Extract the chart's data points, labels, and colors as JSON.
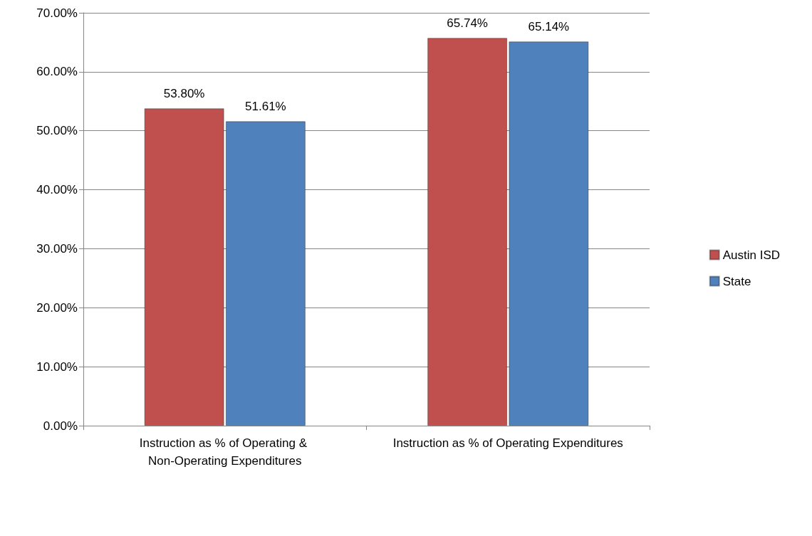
{
  "chart_data": {
    "type": "bar",
    "categories": [
      "Instruction as % of Operating & Non-Operating Expenditures",
      "Instruction as % of Operating Expenditures"
    ],
    "series": [
      {
        "name": "Austin ISD",
        "color": "#c0504d",
        "values": [
          53.8,
          65.74
        ],
        "value_labels": [
          "53.80%",
          "65.74%"
        ]
      },
      {
        "name": "State",
        "color": "#4f81bd",
        "values": [
          51.61,
          65.14
        ],
        "value_labels": [
          "51.61%",
          "65.14%"
        ]
      }
    ],
    "ylim": [
      0,
      70
    ],
    "yticks": [
      {
        "value": 0,
        "label": "0.00%"
      },
      {
        "value": 10,
        "label": "10.00%"
      },
      {
        "value": 20,
        "label": "20.00%"
      },
      {
        "value": 30,
        "label": "30.00%"
      },
      {
        "value": 40,
        "label": "40.00%"
      },
      {
        "value": 50,
        "label": "50.00%"
      },
      {
        "value": 60,
        "label": "60.00%"
      },
      {
        "value": 70,
        "label": "70.00%"
      }
    ],
    "grid": "y",
    "legend": "right"
  }
}
